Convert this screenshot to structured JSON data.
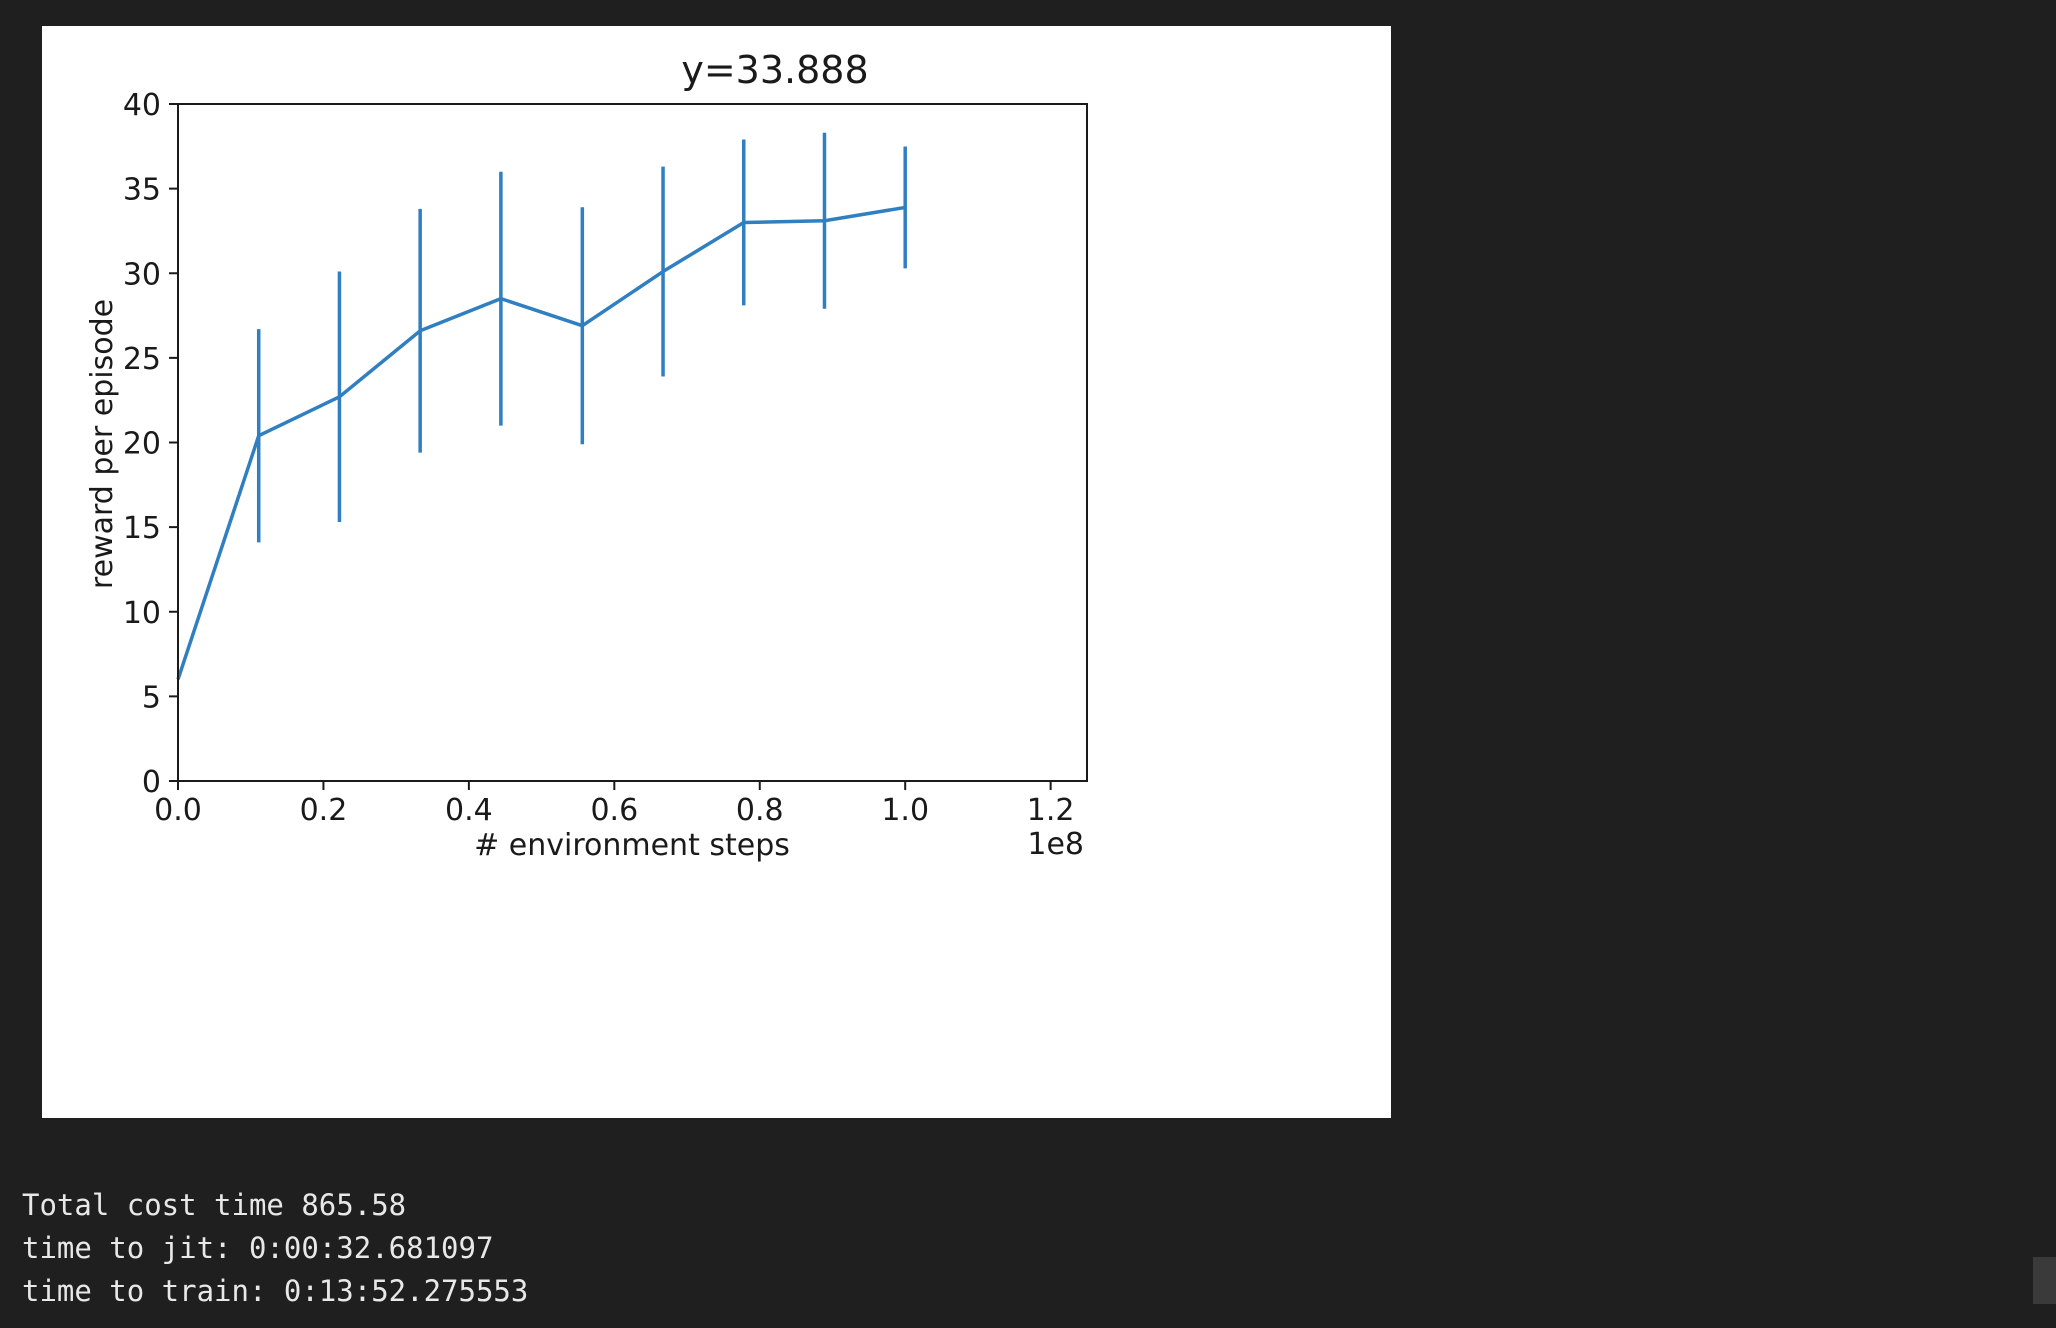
{
  "output": {
    "lines": [
      "Total cost time 865.58",
      "time to jit: 0:00:32.681097",
      "time to train: 0:13:52.275553"
    ]
  },
  "chart_data": {
    "type": "line",
    "title": "y=33.888",
    "xlabel": "# environment steps",
    "ylabel": "reward per episode",
    "x_offset_label": "1e8",
    "xlim": [
      0.0,
      1.25
    ],
    "ylim": [
      0,
      40
    ],
    "x_ticks": [
      0.0,
      0.2,
      0.4,
      0.6,
      0.8,
      1.0,
      1.2
    ],
    "x_tick_labels": [
      "0.0",
      "0.2",
      "0.4",
      "0.6",
      "0.8",
      "1.0",
      "1.2"
    ],
    "y_ticks": [
      0,
      5,
      10,
      15,
      20,
      25,
      30,
      35,
      40
    ],
    "y_tick_labels": [
      "0",
      "5",
      "10",
      "15",
      "20",
      "25",
      "30",
      "35",
      "40"
    ],
    "grid": false,
    "legend": "none",
    "line_color": "#2f7fc1",
    "series": [
      {
        "x": [
          0.0,
          0.111,
          0.222,
          0.333,
          0.444,
          0.556,
          0.667,
          0.778,
          0.889,
          1.0
        ],
        "y": [
          6.0,
          20.4,
          22.7,
          26.6,
          28.5,
          26.9,
          30.1,
          33.0,
          33.1,
          33.888
        ],
        "yerr": [
          0,
          6.3,
          7.4,
          7.2,
          7.5,
          7.0,
          6.2,
          4.9,
          5.2,
          3.6
        ]
      }
    ]
  }
}
